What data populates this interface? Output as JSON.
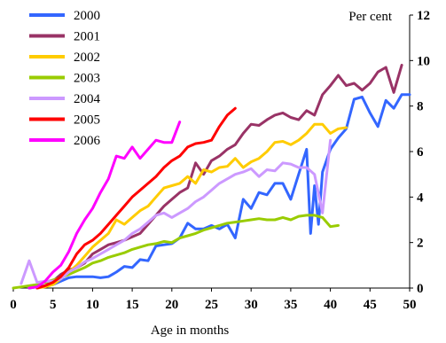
{
  "chart_data": {
    "type": "line",
    "xlabel": "Age in months",
    "ylabel": "Per cent",
    "xlim": [
      0,
      50
    ],
    "ylim": [
      0,
      12
    ],
    "x_ticks": [
      0,
      5,
      10,
      15,
      20,
      25,
      30,
      35,
      40,
      45,
      50
    ],
    "y_ticks": [
      0,
      2,
      4,
      6,
      8,
      10,
      12
    ],
    "legend": "top-left",
    "series": [
      {
        "name": "2000",
        "color": "#3366ff",
        "x": [
          2,
          3,
          4,
          5,
          6,
          7,
          8,
          9,
          10,
          11,
          12,
          13,
          14,
          15,
          16,
          17,
          18,
          19,
          20,
          21,
          22,
          23,
          24,
          25,
          26,
          27,
          28,
          29,
          30,
          31,
          32,
          33,
          34,
          35,
          36,
          37,
          37.5,
          38,
          38.5,
          39,
          40,
          41,
          42,
          43,
          44,
          45,
          46,
          47,
          48,
          49,
          50
        ],
        "y": [
          0,
          0.05,
          0.1,
          0.15,
          0.3,
          0.45,
          0.5,
          0.5,
          0.5,
          0.45,
          0.5,
          0.7,
          0.95,
          0.9,
          1.25,
          1.2,
          1.85,
          1.9,
          1.95,
          2.2,
          2.85,
          2.6,
          2.6,
          2.75,
          2.6,
          2.8,
          2.2,
          3.9,
          3.5,
          4.2,
          4.1,
          4.6,
          4.6,
          3.9,
          5.0,
          6.1,
          2.4,
          4.5,
          2.8,
          5.1,
          6.1,
          6.6,
          7.0,
          8.3,
          8.4,
          7.7,
          7.1,
          8.25,
          7.9,
          8.5,
          8.5
        ]
      },
      {
        "name": "2001",
        "color": "#993366",
        "x": [
          3,
          4,
          5,
          6,
          7,
          8,
          9,
          10,
          11,
          12,
          13,
          14,
          15,
          16,
          17,
          18,
          19,
          20,
          21,
          22,
          23,
          24,
          25,
          26,
          27,
          28,
          29,
          30,
          31,
          32,
          33,
          34,
          35,
          36,
          37,
          38,
          39,
          40,
          41,
          42,
          43,
          44,
          45,
          46,
          47,
          48,
          49
        ],
        "y": [
          0,
          0.1,
          0.3,
          0.6,
          0.8,
          0.9,
          1.1,
          1.5,
          1.7,
          1.9,
          2.0,
          2.1,
          2.25,
          2.4,
          2.8,
          3.2,
          3.6,
          3.9,
          4.2,
          4.4,
          5.5,
          5.0,
          5.6,
          5.8,
          6.1,
          6.3,
          6.8,
          7.2,
          7.15,
          7.4,
          7.6,
          7.7,
          7.5,
          7.4,
          7.8,
          7.6,
          8.5,
          8.9,
          9.35,
          8.9,
          9.0,
          8.7,
          9.0,
          9.5,
          9.7,
          8.6,
          9.8
        ]
      },
      {
        "name": "2002",
        "color": "#ffcc00",
        "x": [
          3,
          4,
          5,
          6,
          7,
          8,
          9,
          10,
          11,
          12,
          13,
          14,
          15,
          16,
          17,
          18,
          19,
          20,
          21,
          22,
          23,
          24,
          25,
          26,
          27,
          28,
          29,
          30,
          31,
          32,
          33,
          34,
          35,
          36,
          37,
          38,
          39,
          40,
          41,
          42
        ],
        "y": [
          0,
          0.05,
          0.15,
          0.4,
          0.7,
          1.0,
          1.4,
          1.8,
          2.1,
          2.4,
          3.0,
          2.8,
          3.1,
          3.4,
          3.6,
          4.0,
          4.4,
          4.5,
          4.6,
          4.9,
          4.6,
          5.2,
          5.1,
          5.3,
          5.35,
          5.7,
          5.3,
          5.55,
          5.7,
          6.0,
          6.4,
          6.45,
          6.3,
          6.5,
          6.8,
          7.2,
          7.2,
          6.8,
          7.0,
          7.05
        ]
      },
      {
        "name": "2003",
        "color": "#99cc00",
        "x": [
          0,
          1,
          2,
          3,
          4,
          5,
          6,
          7,
          8,
          9,
          10,
          11,
          12,
          13,
          14,
          15,
          16,
          17,
          18,
          19,
          20,
          21,
          22,
          23,
          24,
          25,
          26,
          27,
          28,
          29,
          30,
          31,
          32,
          33,
          34,
          35,
          36,
          37,
          38,
          39,
          40,
          41
        ],
        "y": [
          0,
          0.05,
          0.1,
          0.15,
          0.25,
          0.35,
          0.45,
          0.6,
          0.75,
          0.9,
          1.1,
          1.2,
          1.35,
          1.45,
          1.55,
          1.7,
          1.8,
          1.9,
          1.95,
          2.05,
          2.0,
          2.2,
          2.3,
          2.4,
          2.55,
          2.65,
          2.75,
          2.85,
          2.9,
          2.95,
          3.0,
          3.05,
          3.0,
          3.0,
          3.1,
          3.0,
          3.15,
          3.2,
          3.2,
          3.1,
          2.7,
          2.75
        ]
      },
      {
        "name": "2004",
        "color": "#cc99ff",
        "x": [
          1,
          2,
          3,
          4,
          5,
          6,
          7,
          8,
          9,
          10,
          11,
          12,
          13,
          14,
          15,
          16,
          17,
          18,
          19,
          20,
          21,
          22,
          23,
          24,
          25,
          26,
          27,
          28,
          29,
          30,
          31,
          32,
          33,
          34,
          35,
          36,
          37,
          38,
          39,
          40
        ],
        "y": [
          0.2,
          1.2,
          0.25,
          0.3,
          0.3,
          0.4,
          0.7,
          0.9,
          1.15,
          1.3,
          1.5,
          1.7,
          1.9,
          2.1,
          2.4,
          2.6,
          2.9,
          3.2,
          3.3,
          3.1,
          3.3,
          3.5,
          3.8,
          4.0,
          4.3,
          4.6,
          4.8,
          5.0,
          5.1,
          5.25,
          4.9,
          5.2,
          5.15,
          5.5,
          5.45,
          5.3,
          5.3,
          5.0,
          3.3,
          6.5
        ]
      },
      {
        "name": "2005",
        "color": "#ff0000",
        "x": [
          3,
          4,
          5,
          6,
          7,
          8,
          9,
          10,
          11,
          12,
          13,
          14,
          15,
          16,
          17,
          18,
          19,
          20,
          21,
          22,
          23,
          24,
          25,
          26,
          27,
          28
        ],
        "y": [
          0,
          0.1,
          0.25,
          0.5,
          0.9,
          1.5,
          1.9,
          2.1,
          2.4,
          2.8,
          3.2,
          3.6,
          4.0,
          4.3,
          4.6,
          4.9,
          5.3,
          5.6,
          5.8,
          6.2,
          6.35,
          6.4,
          6.5,
          7.1,
          7.6,
          7.9
        ]
      },
      {
        "name": "2006",
        "color": "#ff00ff",
        "x": [
          2,
          3,
          4,
          5,
          6,
          7,
          8,
          9,
          10,
          11,
          12,
          13,
          14,
          15,
          16,
          17,
          18,
          19,
          20,
          21
        ],
        "y": [
          0,
          0.05,
          0.3,
          0.7,
          1.0,
          1.6,
          2.4,
          3.0,
          3.5,
          4.2,
          4.8,
          5.8,
          5.7,
          6.2,
          5.7,
          6.1,
          6.5,
          6.4,
          6.4,
          7.3
        ]
      }
    ]
  }
}
